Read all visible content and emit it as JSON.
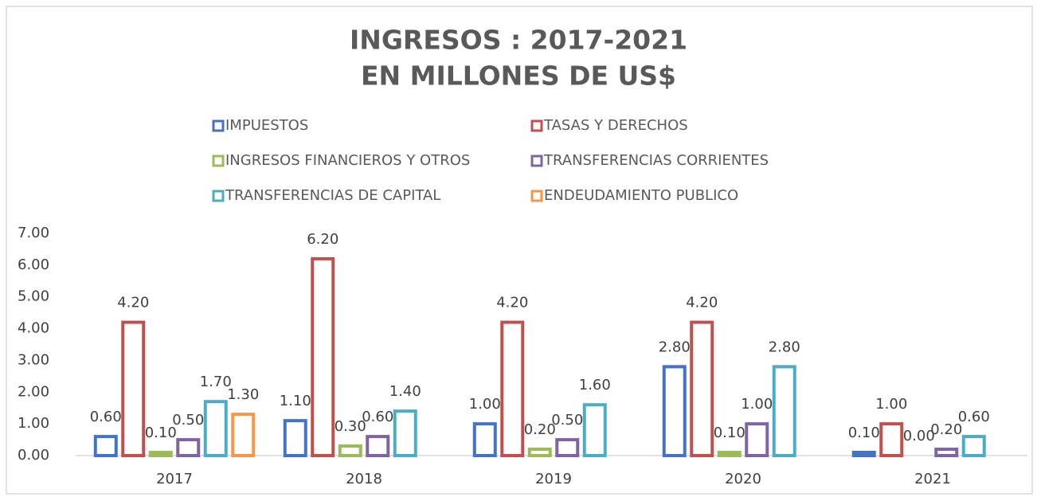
{
  "chart_data": {
    "type": "bar",
    "title": [
      "INGRESOS : 2017-2021",
      "EN MILLONES DE US$"
    ],
    "categories": [
      "2017",
      "2018",
      "2019",
      "2020",
      "2021"
    ],
    "series": [
      {
        "name": "IMPUESTOS",
        "color": "#4472c4",
        "values": [
          0.6,
          1.1,
          1.0,
          2.8,
          0.1
        ],
        "value_labels": [
          "0.60",
          "1.10",
          "1.00",
          "2.80",
          "0.10"
        ]
      },
      {
        "name": "TASAS Y DERECHOS",
        "color": "#c0504d",
        "values": [
          4.2,
          6.2,
          4.2,
          4.2,
          1.0
        ],
        "value_labels": [
          "4.20",
          "6.20",
          "4.20",
          "4.20",
          "1.00"
        ]
      },
      {
        "name": "INGRESOS FINANCIEROS Y OTROS",
        "color": "#9bbb59",
        "values": [
          0.1,
          0.3,
          0.2,
          0.1,
          0.0
        ],
        "value_labels": [
          "0.10",
          "0.30",
          "0.20",
          "0.10",
          "0.00"
        ]
      },
      {
        "name": "TRANSFERENCIAS CORRIENTES",
        "color": "#8064a2",
        "values": [
          0.5,
          0.6,
          0.5,
          1.0,
          0.2
        ],
        "value_labels": [
          "0.50",
          "0.60",
          "0.50",
          "1.00",
          "0.20"
        ]
      },
      {
        "name": "TRANSFERENCIAS DE CAPITAL",
        "color": "#4bacc6",
        "values": [
          1.7,
          1.4,
          1.6,
          2.8,
          0.6
        ],
        "value_labels": [
          "1.70",
          "1.40",
          "1.60",
          "2.80",
          "0.60"
        ]
      },
      {
        "name": "ENDEUDAMIENTO PUBLICO",
        "color": "#f79646",
        "values": [
          1.3,
          null,
          null,
          null,
          null
        ],
        "value_labels": [
          "1.30",
          null,
          null,
          null,
          null
        ]
      }
    ],
    "ylim": [
      0,
      7
    ],
    "yticks": [
      {
        "value": 0,
        "label": "0.00"
      },
      {
        "value": 1,
        "label": "1.00"
      },
      {
        "value": 2,
        "label": "2.00"
      },
      {
        "value": 3,
        "label": "3.00"
      },
      {
        "value": 4,
        "label": "4.00"
      },
      {
        "value": 5,
        "label": "5.00"
      },
      {
        "value": 6,
        "label": "6.00"
      },
      {
        "value": 7,
        "label": "7.00"
      }
    ],
    "grid": false,
    "legend": "top"
  }
}
